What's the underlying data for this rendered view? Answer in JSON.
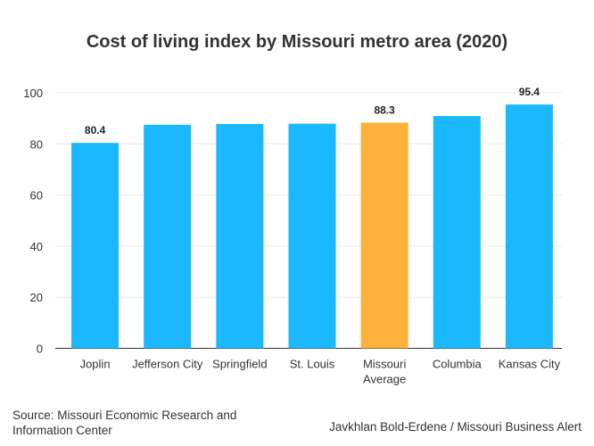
{
  "chart_data": {
    "type": "bar",
    "title": "Cost of living index by Missouri metro area (2020)",
    "categories": [
      "Joplin",
      "Jefferson City",
      "Springfield",
      "St. Louis",
      "Missouri Average",
      "Columbia",
      "Kansas City"
    ],
    "category_lines": [
      [
        "Joplin"
      ],
      [
        "Jefferson City"
      ],
      [
        "Springfield"
      ],
      [
        "St. Louis"
      ],
      [
        "Missouri",
        "Average"
      ],
      [
        "Columbia"
      ],
      [
        "Kansas City"
      ]
    ],
    "values": [
      80.4,
      87.5,
      87.8,
      87.9,
      88.3,
      90.9,
      95.4
    ],
    "data_labels": {
      "0": "80.4",
      "4": "88.3",
      "6": "95.4"
    },
    "highlight_index": 4,
    "colors": {
      "bar": "#1CB8FD",
      "highlight": "#FCB13B",
      "grid": "#E6E6E6"
    },
    "ylim": [
      0,
      100
    ],
    "yticks": [
      0,
      20,
      40,
      60,
      80,
      100
    ],
    "grid": true,
    "xlabel": "",
    "ylabel": ""
  },
  "footer": {
    "source": "Source: Missouri Economic Research and Information Center",
    "credit": "Javkhlan Bold-Erdene / Missouri Business Alert"
  }
}
